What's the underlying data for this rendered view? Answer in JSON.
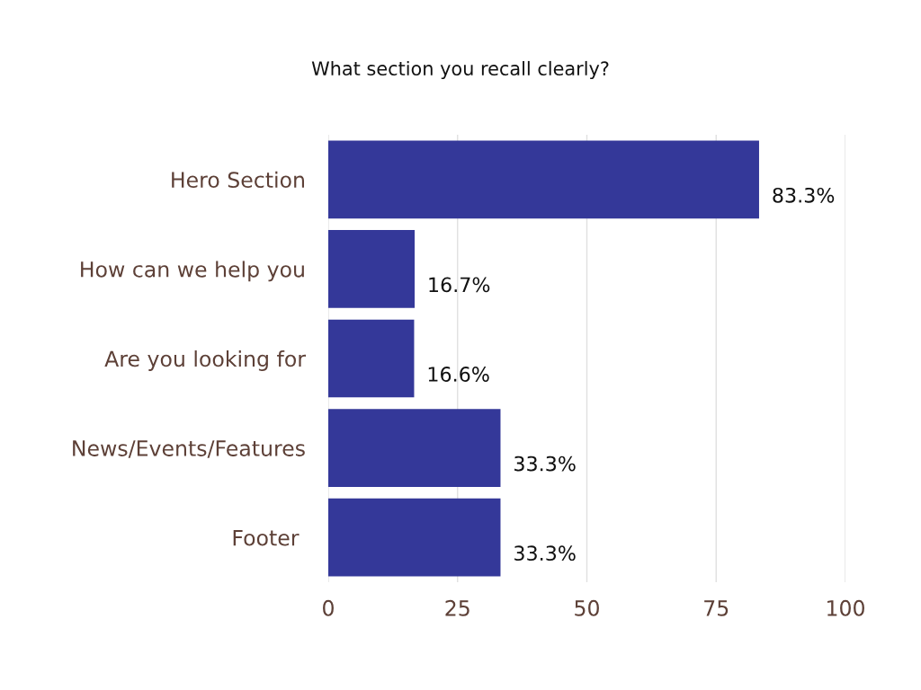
{
  "chart_data": {
    "type": "bar",
    "orientation": "horizontal",
    "title": "What section you recall clearly?",
    "categories": [
      "Hero Section",
      "How can we help you",
      "Are you looking for",
      "News/Events/Features",
      "Footer "
    ],
    "values": [
      83.3,
      16.7,
      16.6,
      33.3,
      33.3
    ],
    "color": "#343899",
    "value_labels": [
      "83.3%",
      "16.7%",
      "16.6%",
      "33.3%",
      "33.3%"
    ],
    "xlim": [
      0,
      100
    ],
    "xticks": [
      0,
      25,
      50,
      75,
      100
    ],
    "grid": "x",
    "legend": false
  }
}
